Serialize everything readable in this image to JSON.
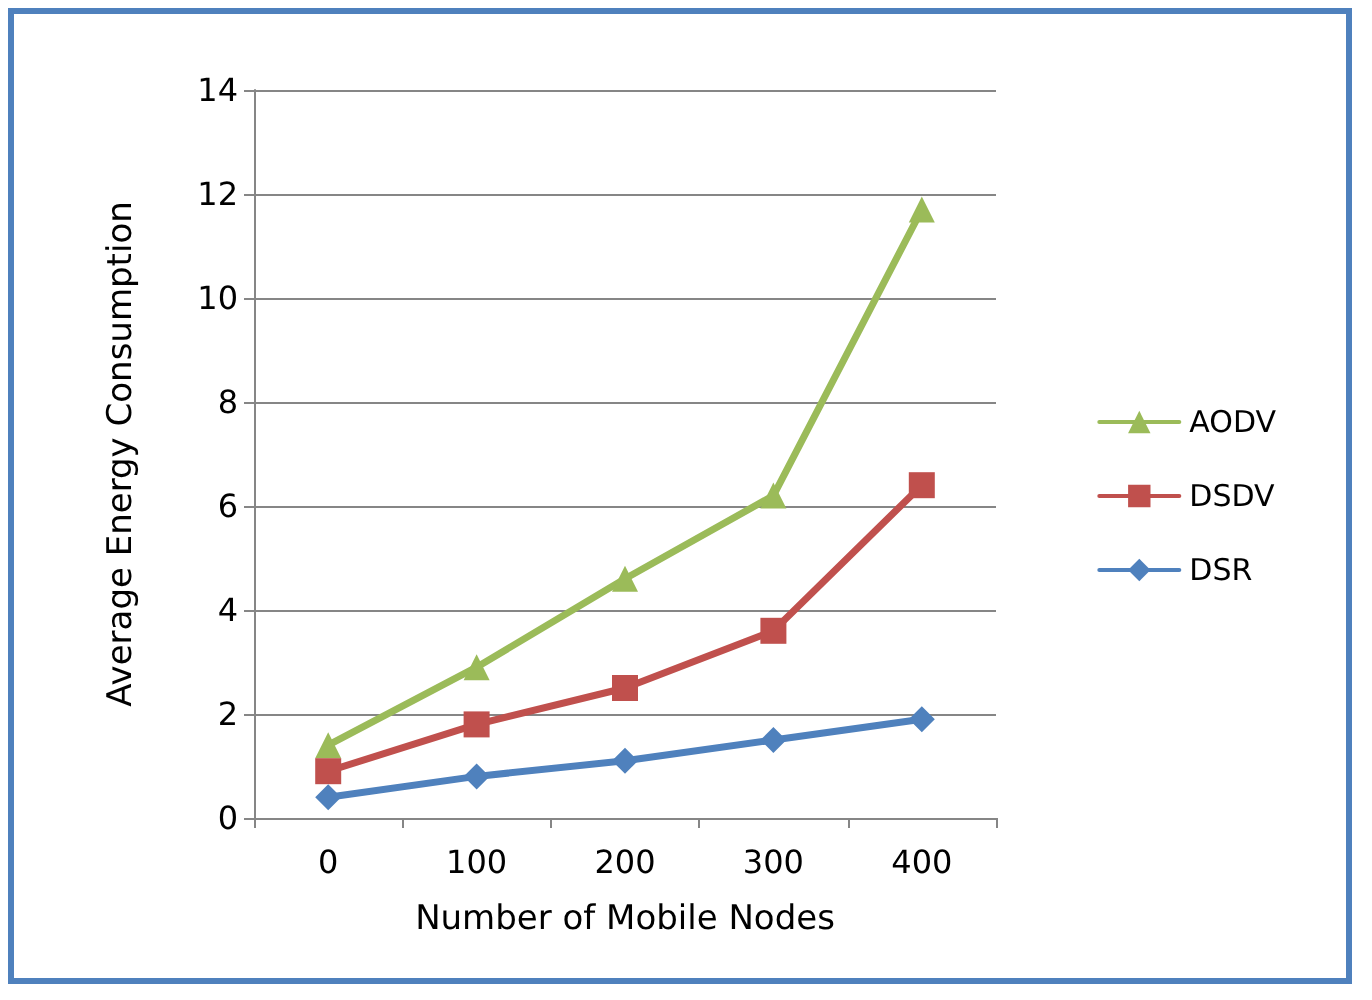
{
  "chart_data": {
    "type": "line",
    "xlabel": "Number of Mobile Nodes",
    "ylabel": "Average Energy Consumption",
    "categories": [
      "0",
      "100",
      "200",
      "300",
      "400"
    ],
    "series": [
      {
        "name": "AODV",
        "color": "#9bbb59",
        "marker": "triangle",
        "values": [
          1.4,
          2.9,
          4.6,
          6.2,
          11.7
        ]
      },
      {
        "name": "DSDV",
        "color": "#c0504d",
        "marker": "square",
        "values": [
          0.9,
          1.8,
          2.5,
          3.6,
          6.4
        ]
      },
      {
        "name": "DSR",
        "color": "#4f81bd",
        "marker": "diamond",
        "values": [
          0.4,
          0.8,
          1.1,
          1.5,
          1.9
        ]
      }
    ],
    "ylim": [
      0,
      14
    ],
    "yticks": [
      0,
      2,
      4,
      6,
      8,
      10,
      12,
      14
    ],
    "grid": "y",
    "legend": "right"
  }
}
